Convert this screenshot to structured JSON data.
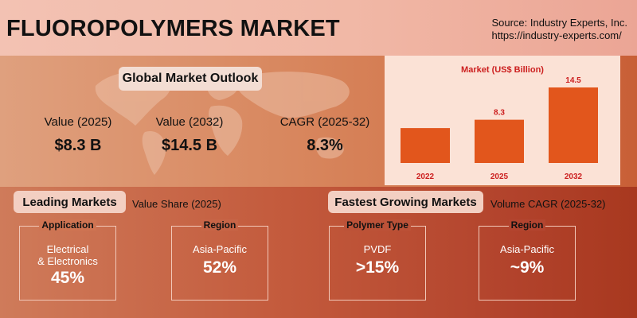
{
  "header": {
    "title": "FLUOROPOLYMERS MARKET",
    "source_line1": "Source: Industry Experts, Inc.",
    "source_line2": "https://industry-experts.com/"
  },
  "outlook": {
    "title": "Global Market Outlook",
    "metrics": [
      {
        "label": "Value (2025)",
        "value": "$8.3 B"
      },
      {
        "label": "Value (2032)",
        "value": "$14.5 B"
      },
      {
        "label": "CAGR (2025-32)",
        "value": "8.3%"
      }
    ]
  },
  "chart_data": {
    "type": "bar",
    "title": "Market  (US$ Billion)",
    "categories": [
      "2022",
      "2025",
      "2032"
    ],
    "values": [
      null,
      8.3,
      14.5
    ],
    "value_labels": [
      "",
      "8.3",
      "14.5"
    ],
    "bar_color": "#e2561c",
    "title_color": "#cc1f1f",
    "ylim": [
      0,
      14.5
    ]
  },
  "leading": {
    "title": "Leading Markets",
    "subtitle": "Value Share (2025)",
    "cards": [
      {
        "head": "Application",
        "line1": "Electrical",
        "line2": "& Electronics",
        "value": "45%"
      },
      {
        "head": "Region",
        "line1": "Asia-Pacific",
        "line2": "",
        "value": "52%"
      }
    ]
  },
  "fastest": {
    "title": "Fastest Growing Markets",
    "subtitle": "Volume CAGR (2025-32)",
    "cards": [
      {
        "head": "Polymer Type",
        "line1": "PVDF",
        "line2": "",
        "value": ">15%"
      },
      {
        "head": "Region",
        "line1": "Asia-Pacific",
        "line2": "",
        "value": "~9%"
      }
    ]
  }
}
